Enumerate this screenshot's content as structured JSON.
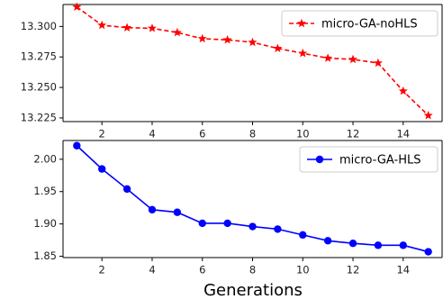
{
  "chart_data": [
    {
      "type": "line",
      "x": [
        1,
        2,
        3,
        4,
        5,
        6,
        7,
        8,
        9,
        10,
        11,
        12,
        13,
        14,
        15
      ],
      "series": [
        {
          "name": "micro-GA-noHLS",
          "values": [
            13.316,
            13.301,
            13.299,
            13.2985,
            13.295,
            13.29,
            13.289,
            13.287,
            13.282,
            13.278,
            13.274,
            13.273,
            13.27,
            13.247,
            13.227
          ],
          "color": "#ff0000",
          "marker": "star",
          "linestyle": "dashed"
        }
      ],
      "xticks": [
        "2",
        "4",
        "6",
        "8",
        "10",
        "12",
        "14"
      ],
      "yticks": [
        "13.225",
        "13.250",
        "13.275",
        "13.300"
      ],
      "xlim": [
        0.45,
        15.55
      ],
      "ylim": [
        13.222,
        13.318
      ],
      "legend_position": "top-right",
      "grid": false
    },
    {
      "type": "line",
      "x": [
        1,
        2,
        3,
        4,
        5,
        6,
        7,
        8,
        9,
        10,
        11,
        12,
        13,
        14,
        15
      ],
      "series": [
        {
          "name": "micro-GA-HLS",
          "values": [
            2.021,
            1.985,
            1.954,
            1.922,
            1.918,
            1.901,
            1.901,
            1.896,
            1.892,
            1.883,
            1.874,
            1.87,
            1.867,
            1.867,
            1.857
          ],
          "color": "#0000ff",
          "marker": "circle",
          "linestyle": "solid"
        }
      ],
      "xticks": [
        "2",
        "4",
        "6",
        "8",
        "10",
        "12",
        "14"
      ],
      "yticks": [
        "1.85",
        "1.90",
        "1.95",
        "2.00"
      ],
      "xlim": [
        0.45,
        15.55
      ],
      "ylim": [
        1.848,
        2.029
      ],
      "xlabel": "Generations",
      "legend_position": "top-right",
      "grid": false
    }
  ]
}
